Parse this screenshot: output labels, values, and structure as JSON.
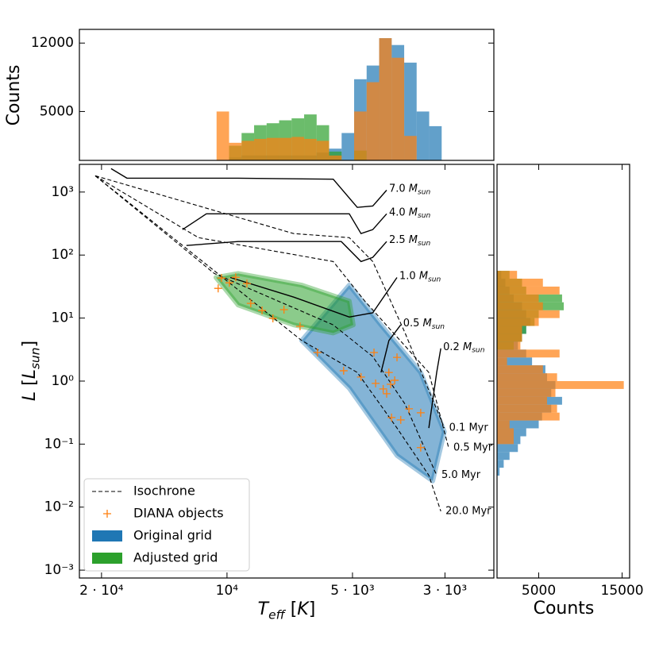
{
  "chart_data": [
    {
      "type": "histogram",
      "orientation": "vertical",
      "xscale": "log",
      "xlim": [
        22600,
        2290
      ],
      "bins": [
        10593,
        9886,
        9226,
        8610,
        8035,
        7499,
        6998,
        6531,
        6095,
        5689,
        5309,
        4955,
        4624,
        4315,
        4027,
        3758,
        3508,
        3273,
        3055
      ],
      "series": [
        {
          "color": "#1f77b4",
          "values": [
            0,
            300,
            500,
            500,
            500,
            500,
            500,
            500,
            800,
            1200,
            2800,
            8300,
            9700,
            12500,
            11800,
            10000,
            5000,
            3500
          ]
        },
        {
          "color": "#2ca02c",
          "values": [
            0,
            1500,
            2800,
            3600,
            3800,
            4100,
            4300,
            4700,
            3600,
            900,
            0,
            1000,
            0,
            0,
            0,
            0,
            0,
            0
          ]
        },
        {
          "color": "#ff7f0e",
          "values": [
            5000,
            1800,
            2000,
            2200,
            2300,
            2300,
            2400,
            2200,
            2000,
            500,
            0,
            5000,
            8000,
            12500,
            10500,
            2500,
            0,
            0
          ]
        }
      ],
      "ylim": [
        0,
        13400
      ],
      "yticks": [
        5000,
        12000
      ],
      "ylabel": "Counts"
    },
    {
      "type": "scatter",
      "xscale": "log",
      "yscale": "log",
      "xlim": [
        22600,
        2290
      ],
      "ylim": [
        0.00075,
        2750
      ],
      "xticks": [
        {
          "value": 20000,
          "label": "2 · 10⁴"
        },
        {
          "value": 10000,
          "label": "10⁴"
        },
        {
          "value": 5000,
          "label": "5 · 10³"
        },
        {
          "value": 3000,
          "label": "3 · 10³"
        }
      ],
      "yticks": [
        {
          "value": 0.001,
          "label": "10⁻³"
        },
        {
          "value": 0.01,
          "label": "10⁻²"
        },
        {
          "value": 0.1,
          "label": "10⁻¹"
        },
        {
          "value": 1,
          "label": "10⁰"
        },
        {
          "value": 10,
          "label": "10¹"
        },
        {
          "value": 100,
          "label": "10²"
        },
        {
          "value": 1000,
          "label": "10³"
        }
      ],
      "xlabel": [
        {
          "text": "T",
          "italic": true
        },
        {
          "text": "eff",
          "sub": true,
          "italic": true
        },
        {
          "text": " ["
        },
        {
          "text": "K",
          "italic": true
        },
        {
          "text": "]"
        }
      ],
      "ylabel": [
        {
          "text": "L",
          "italic": true
        },
        {
          "text": " ["
        },
        {
          "text": "L",
          "italic": true
        },
        {
          "text": "sun",
          "sub": true,
          "italic": true
        },
        {
          "text": "]"
        }
      ],
      "legend": "lower left",
      "series": [
        {
          "name": "Isochrone",
          "kind": "line",
          "dashed": true,
          "color": "#000000",
          "lines": [
            {
              "label": "0.1 Myr",
              "x": [
                20700,
                6920,
                5090,
                4470,
                3740,
                3010
              ],
              "y": [
                1810,
                219,
                189,
                79,
                5.8,
                0.18
              ]
            },
            {
              "label": "0.5 Myr",
              "x": [
                20700,
                11710,
                5560,
                4670,
                3280,
                2940
              ],
              "y": [
                1810,
                189,
                79,
                18.6,
                1.37,
                0.088
              ]
            },
            {
              "label": "5.0 Myr",
              "x": [
                20700,
                10730,
                5560,
                4470,
                3740,
                3140
              ],
              "y": [
                1810,
                51,
                7.8,
                2.45,
                0.43,
                0.032
              ]
            },
            {
              "label": "20.0 Myr",
              "x": [
                20700,
                6620,
                4870,
                3910,
                3280,
                3070
              ],
              "y": [
                1810,
                4.4,
                1.37,
                0.18,
                0.032,
                0.0086
              ]
            }
          ]
        },
        {
          "name": "DIANA objects",
          "kind": "scatter",
          "color": "#ff7f0e",
          "x": [
            10500,
            10310,
            9870,
            9530,
            8960,
            8770,
            8240,
            7760,
            7300,
            6680,
            6070,
            5250,
            4770,
            4440,
            4400,
            4220,
            4090,
            4050,
            4140,
            3960,
            3910,
            4030,
            3830,
            3660,
            3430,
            3430
          ],
          "y": [
            29.6,
            43.2,
            36.3,
            44.4,
            35.3,
            17.1,
            13.2,
            9.9,
            13.6,
            7.4,
            2.84,
            1.46,
            1.16,
            2.84,
            0.92,
            0.75,
            1.37,
            0.89,
            0.63,
            1.03,
            2.38,
            0.264,
            0.242,
            0.363,
            0.314,
            0.088
          ]
        },
        {
          "name": "Original grid",
          "kind": "area",
          "color": "#1f77b4",
          "x": [
            6620,
            5090,
            4270,
            3430,
            3010,
            3210,
            3910,
            5090
          ],
          "y": [
            4.4,
            33.3,
            7.8,
            1.37,
            0.157,
            0.026,
            0.066,
            0.77
          ]
        },
        {
          "name": "Adjusted grid",
          "kind": "area",
          "color": "#2ca02c",
          "x": [
            10630,
            9400,
            6620,
            5090,
            4980,
            5560,
            6920,
            9400
          ],
          "y": [
            44,
            51,
            33.3,
            18.6,
            7.8,
            5.8,
            7.8,
            16.1
          ]
        }
      ],
      "track_color": "#000000",
      "tracks": [
        {
          "label": [
            {
              "text": "7.0 "
            },
            {
              "text": "M",
              "italic": true
            },
            {
              "text": "sun",
              "sub": true,
              "italic": true
            }
          ],
          "x": [
            18970,
            17380,
            9400,
            5560,
            4870,
            4470,
            4140
          ],
          "y": [
            2350,
            1660,
            1660,
            1600,
            570,
            600,
            1070
          ]
        },
        {
          "label": [
            {
              "text": "4.0 "
            },
            {
              "text": "M",
              "italic": true
            },
            {
              "text": "sun",
              "sub": true,
              "italic": true
            }
          ],
          "x": [
            12790,
            11210,
            5090,
            4770,
            4470,
            4140
          ],
          "y": [
            253,
            451,
            451,
            219,
            253,
            451
          ]
        },
        {
          "label": [
            {
              "text": "2.5 "
            },
            {
              "text": "M",
              "italic": true
            },
            {
              "text": "sun",
              "sub": true,
              "italic": true
            }
          ],
          "x": [
            12510,
            9400,
            5320,
            4770,
            4470,
            4140
          ],
          "y": [
            142,
            164,
            164,
            79,
            92,
            164
          ]
        },
        {
          "label": [
            {
              "text": "1.0 "
            },
            {
              "text": "M",
              "italic": true
            },
            {
              "text": "sun",
              "sub": true,
              "italic": true
            }
          ],
          "x": [
            9820,
            6920,
            5090,
            4470,
            3910
          ],
          "y": [
            44,
            21.5,
            10.4,
            12.1,
            44
          ]
        },
        {
          "label": [
            {
              "text": "0.5 "
            },
            {
              "text": "M",
              "italic": true
            },
            {
              "text": "sun",
              "sub": true,
              "italic": true
            }
          ],
          "x": [
            4270,
            4090,
            3830
          ],
          "y": [
            1.37,
            4.4,
            7.8
          ]
        },
        {
          "label": [
            {
              "text": "0.2 "
            },
            {
              "text": "M",
              "italic": true
            },
            {
              "text": "sun",
              "sub": true,
              "italic": true
            }
          ],
          "x": [
            3280,
            3140,
            3070
          ],
          "y": [
            0.18,
            1.37,
            3.3
          ]
        }
      ]
    },
    {
      "type": "histogram",
      "orientation": "horizontal",
      "yscale": "log",
      "ylim": [
        0.00075,
        2750
      ],
      "bins": [
        56.2,
        42.2,
        31.6,
        23.7,
        17.8,
        13.3,
        10,
        7.5,
        5.62,
        4.22,
        3.16,
        2.37,
        1.78,
        1.33,
        1,
        0.75,
        0.562,
        0.422,
        0.316,
        0.237,
        0.178,
        0.133,
        0.1,
        0.075,
        0.0562,
        0.0422,
        0.0316
      ],
      "series": [
        {
          "color": "#1f77b4",
          "values": [
            500,
            1000,
            1500,
            2000,
            3000,
            3500,
            4000,
            3500,
            3000,
            2500,
            3500,
            4200,
            5800,
            6000,
            7000,
            6500,
            7800,
            6500,
            5400,
            5000,
            3500,
            2800,
            2500,
            1500,
            800,
            300
          ]
        },
        {
          "color": "#2ca02c",
          "values": [
            1500,
            3000,
            3500,
            7800,
            8000,
            5000,
            4500,
            3500,
            3000,
            2000,
            0,
            0,
            0,
            0,
            0,
            0,
            0,
            0,
            0,
            0,
            0,
            0,
            0,
            0,
            0,
            0
          ]
        },
        {
          "color": "#ff7f0e",
          "values": [
            2400,
            5500,
            7500,
            5000,
            5500,
            7500,
            5000,
            3000,
            3000,
            2800,
            7500,
            1200,
            5500,
            7200,
            15200,
            7000,
            6000,
            7200,
            7500,
            1500,
            2000,
            2000,
            0,
            0,
            0,
            0
          ]
        }
      ],
      "xlim": [
        0,
        15900
      ],
      "xticks": [
        5000,
        15000
      ],
      "xlabel": "Counts"
    }
  ]
}
